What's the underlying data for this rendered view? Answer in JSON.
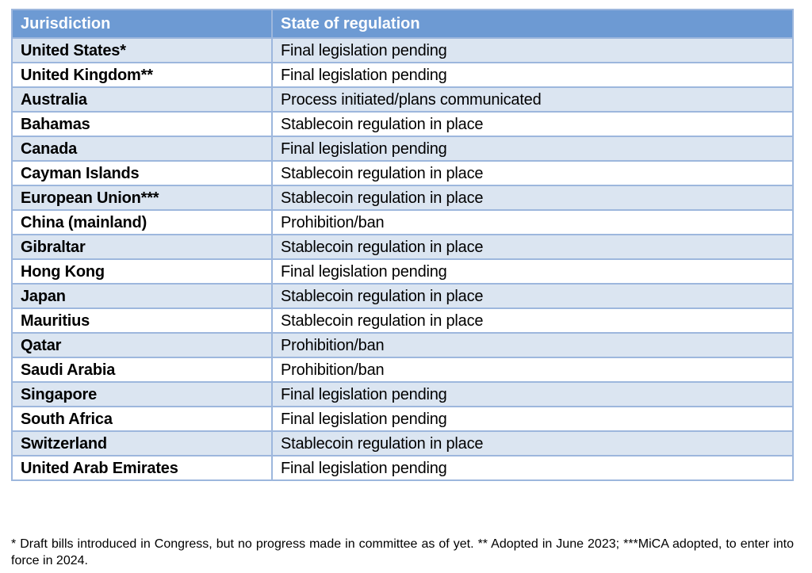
{
  "table": {
    "headers": {
      "jurisdiction": "Jurisdiction",
      "state": "State of regulation"
    },
    "rows": [
      {
        "jurisdiction": "United States*",
        "state": "Final legislation pending"
      },
      {
        "jurisdiction": "United Kingdom**",
        "state": "Final legislation pending"
      },
      {
        "jurisdiction": "Australia",
        "state": "Process initiated/plans communicated"
      },
      {
        "jurisdiction": "Bahamas",
        "state": "Stablecoin regulation in place"
      },
      {
        "jurisdiction": "Canada",
        "state": "Final legislation pending"
      },
      {
        "jurisdiction": "Cayman Islands",
        "state": "Stablecoin regulation in place"
      },
      {
        "jurisdiction": "European Union***",
        "state": "Stablecoin regulation in place"
      },
      {
        "jurisdiction": "China (mainland)",
        "state": "Prohibition/ban"
      },
      {
        "jurisdiction": "Gibraltar",
        "state": "Stablecoin regulation in place"
      },
      {
        "jurisdiction": "Hong Kong",
        "state": "Final legislation pending"
      },
      {
        "jurisdiction": "Japan",
        "state": "Stablecoin regulation in place"
      },
      {
        "jurisdiction": "Mauritius",
        "state": "Stablecoin regulation in place"
      },
      {
        "jurisdiction": "Qatar",
        "state": "Prohibition/ban"
      },
      {
        "jurisdiction": "Saudi Arabia",
        "state": "Prohibition/ban"
      },
      {
        "jurisdiction": "Singapore",
        "state": "Final legislation pending"
      },
      {
        "jurisdiction": "South Africa",
        "state": "Final legislation pending"
      },
      {
        "jurisdiction": "Switzerland",
        "state": "Stablecoin regulation in place"
      },
      {
        "jurisdiction": "United Arab Emirates",
        "state": "Final legislation pending"
      }
    ]
  },
  "footnote": "* Draft bills introduced in Congress, but no progress made in committee as of yet. ** Adopted in June 2023; ***MiCA adopted, to enter into force in 2024.",
  "colors": {
    "header_bg": "#6d9ad3",
    "row_alt_bg": "#dbe5f1",
    "border": "#9db7dd"
  }
}
